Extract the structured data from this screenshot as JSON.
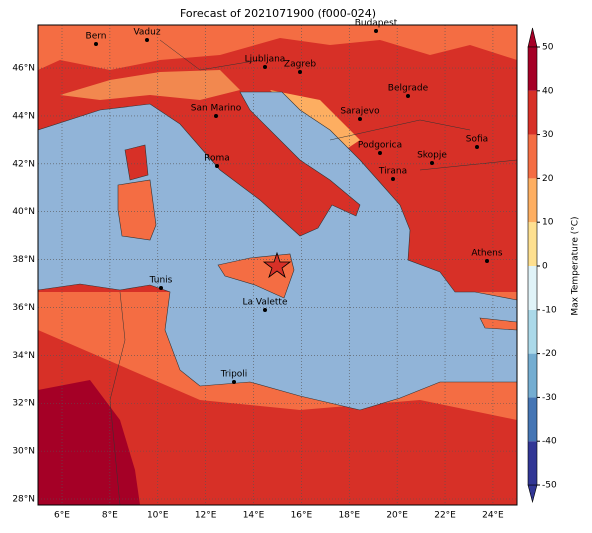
{
  "title": "Forecast of 2021071900 (f000-024)",
  "map": {
    "x_ticks": [
      "6°E",
      "8°E",
      "10°E",
      "12°E",
      "14°E",
      "16°E",
      "18°E",
      "20°E",
      "22°E",
      "24°E"
    ],
    "y_ticks": [
      "28°N",
      "30°N",
      "32°N",
      "34°N",
      "36°N",
      "38°N",
      "40°N",
      "42°N",
      "44°N",
      "46°N"
    ],
    "cities": [
      "Bern",
      "Vaduz",
      "Budapest",
      "Ljubljana",
      "Zagreb",
      "Belgrade",
      "San Marino",
      "Sarajevo",
      "Roma",
      "Podgorica",
      "Skopje",
      "Sofia",
      "Tirana",
      "Athens",
      "Tunis",
      "La Valette",
      "Tripoli"
    ]
  },
  "colorbar": {
    "label": "Max Temperature (°C)",
    "ticks": [
      -50,
      -40,
      -30,
      -20,
      -10,
      0,
      10,
      20,
      30,
      40,
      50
    ]
  }
}
